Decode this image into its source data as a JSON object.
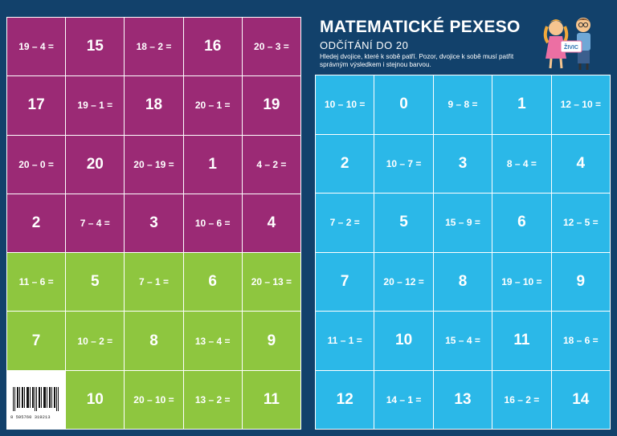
{
  "colors": {
    "background": "#12416b",
    "magenta": "#9b2a75",
    "green": "#8ec63f",
    "cyan": "#2bb8e8",
    "white": "#ffffff"
  },
  "header": {
    "title": "MATEMATICKÉ PEXESO",
    "subtitle": "ODČÍTÁNÍ DO 20",
    "instructions": "Hledej dvojice, které k sobě patří. Pozor, dvojice k sobě musí patřit správným výsledkem i stejnou barvou."
  },
  "illustration": {
    "icon": "kids-illustration-icon",
    "sign_text": "ŽIVIC"
  },
  "barcode": {
    "icon": "barcode-icon",
    "digits": "8 595760 319213"
  },
  "left_cards": [
    {
      "text": "19 – 4 =",
      "color": "magenta"
    },
    {
      "text": "15",
      "color": "magenta"
    },
    {
      "text": "18 – 2 =",
      "color": "magenta"
    },
    {
      "text": "16",
      "color": "magenta"
    },
    {
      "text": "20 – 3 =",
      "color": "magenta"
    },
    {
      "text": "17",
      "color": "magenta"
    },
    {
      "text": "19 – 1 =",
      "color": "magenta"
    },
    {
      "text": "18",
      "color": "magenta"
    },
    {
      "text": "20 – 1 =",
      "color": "magenta"
    },
    {
      "text": "19",
      "color": "magenta"
    },
    {
      "text": "20 – 0 =",
      "color": "magenta"
    },
    {
      "text": "20",
      "color": "magenta"
    },
    {
      "text": "20 – 19 =",
      "color": "magenta"
    },
    {
      "text": "1",
      "color": "magenta"
    },
    {
      "text": "4 – 2 =",
      "color": "magenta"
    },
    {
      "text": "2",
      "color": "magenta"
    },
    {
      "text": "7 – 4 =",
      "color": "magenta"
    },
    {
      "text": "3",
      "color": "magenta"
    },
    {
      "text": "10 – 6 =",
      "color": "magenta"
    },
    {
      "text": "4",
      "color": "magenta"
    },
    {
      "text": "11 – 6 =",
      "color": "green"
    },
    {
      "text": "5",
      "color": "green"
    },
    {
      "text": "7 – 1 =",
      "color": "green"
    },
    {
      "text": "6",
      "color": "green"
    },
    {
      "text": "20 – 13 =",
      "color": "green"
    },
    {
      "text": "7",
      "color": "green"
    },
    {
      "text": "10 – 2 =",
      "color": "green"
    },
    {
      "text": "8",
      "color": "green"
    },
    {
      "text": "13 – 4 =",
      "color": "green"
    },
    {
      "text": "9",
      "color": "green"
    },
    {
      "text": "",
      "color": "blank"
    },
    {
      "text": "10",
      "color": "green"
    },
    {
      "text": "20 – 10 =",
      "color": "green"
    },
    {
      "text": "13 – 2 =",
      "color": "green"
    },
    {
      "text": "11",
      "color": "green"
    }
  ],
  "right_cards": [
    {
      "text": "10 – 10 =",
      "color": "cyan"
    },
    {
      "text": "0",
      "color": "cyan"
    },
    {
      "text": "9 – 8 =",
      "color": "cyan"
    },
    {
      "text": "1",
      "color": "cyan"
    },
    {
      "text": "12 – 10 =",
      "color": "cyan"
    },
    {
      "text": "2",
      "color": "cyan"
    },
    {
      "text": "10 – 7 =",
      "color": "cyan"
    },
    {
      "text": "3",
      "color": "cyan"
    },
    {
      "text": "8 – 4 =",
      "color": "cyan"
    },
    {
      "text": "4",
      "color": "cyan"
    },
    {
      "text": "7 – 2 =",
      "color": "cyan"
    },
    {
      "text": "5",
      "color": "cyan"
    },
    {
      "text": "15 – 9 =",
      "color": "cyan"
    },
    {
      "text": "6",
      "color": "cyan"
    },
    {
      "text": "12 – 5 =",
      "color": "cyan"
    },
    {
      "text": "7",
      "color": "cyan"
    },
    {
      "text": "20 – 12 =",
      "color": "cyan"
    },
    {
      "text": "8",
      "color": "cyan"
    },
    {
      "text": "19 – 10 =",
      "color": "cyan"
    },
    {
      "text": "9",
      "color": "cyan"
    },
    {
      "text": "11 – 1 =",
      "color": "cyan"
    },
    {
      "text": "10",
      "color": "cyan"
    },
    {
      "text": "15 – 4 =",
      "color": "cyan"
    },
    {
      "text": "11",
      "color": "cyan"
    },
    {
      "text": "18 – 6 =",
      "color": "cyan"
    },
    {
      "text": "12",
      "color": "cyan"
    },
    {
      "text": "14 – 1 =",
      "color": "cyan"
    },
    {
      "text": "13",
      "color": "cyan"
    },
    {
      "text": "16 – 2 =",
      "color": "cyan"
    },
    {
      "text": "14",
      "color": "cyan"
    }
  ]
}
